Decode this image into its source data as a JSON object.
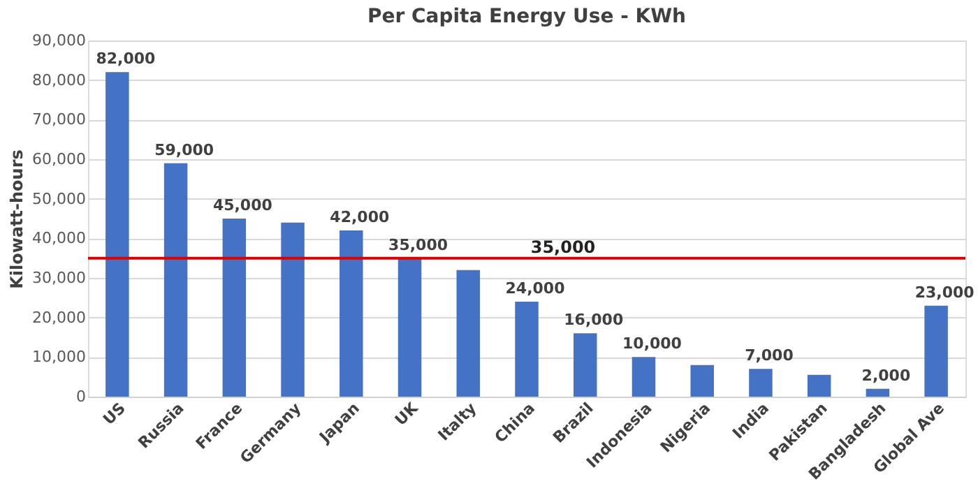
{
  "chart_data": {
    "type": "bar",
    "title": "Per Capita Energy Use - KWh",
    "ylabel": "Kilowatt-hours",
    "categories": [
      "US",
      "Russia",
      "France",
      "Germany",
      "Japan",
      "UK",
      "Italty",
      "China",
      "Brazil",
      "Indonesia",
      "Nigeria",
      "India",
      "Pakistan",
      "Bangladesh",
      "Global Ave"
    ],
    "values": [
      82000,
      59000,
      45000,
      44000,
      42000,
      35000,
      32000,
      24000,
      16000,
      10000,
      8000,
      7000,
      5500,
      2000,
      23000
    ],
    "value_labels": [
      "82,000",
      "59,000",
      "45,000",
      null,
      "42,000",
      "35,000",
      null,
      "24,000",
      "16,000",
      "10,000",
      null,
      "7,000",
      null,
      "2,000",
      "23,000"
    ],
    "color": "#4472c4",
    "ylim": [
      0,
      90000
    ],
    "yticks": [
      0,
      {
        "value": 10000,
        "label": "10,000"
      },
      {
        "value": 20000,
        "label": "20,000"
      },
      {
        "value": 30000,
        "label": "30,000"
      },
      {
        "value": 40000,
        "label": "40,000"
      },
      {
        "value": 50000,
        "label": "50,000"
      },
      {
        "value": 60000,
        "label": "60,000"
      },
      {
        "value": 70000,
        "label": "70,000"
      },
      {
        "value": 80000,
        "label": "80,000"
      },
      {
        "value": 90000,
        "label": "90,000"
      }
    ],
    "grid": "y",
    "ref_lines": [
      {
        "axis": "y",
        "value": 35000,
        "label": "35,000",
        "color": "#e00000"
      }
    ]
  }
}
